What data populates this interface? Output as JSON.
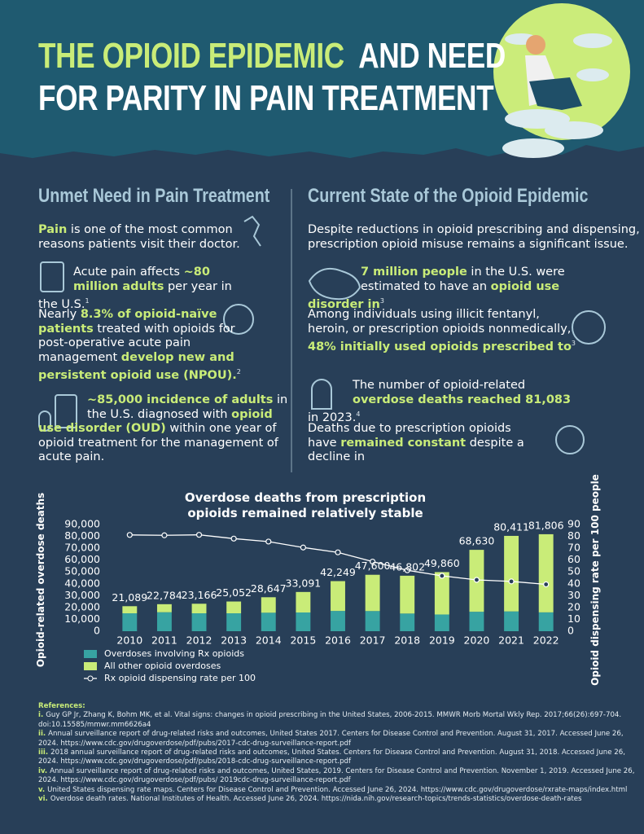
{
  "header": {
    "title_parts": [
      "THE OPIOID EPIDEMIC",
      "AND NEED",
      "FOR PARITY IN PAIN TREATMENT"
    ]
  },
  "sections": [
    {
      "heading": "Unmet Need in Pain Treatment",
      "paragraphs": [
        [
          {
            "highlight": "Pain"
          },
          {
            "plain": " is one of the most common reasons patients visit their doctor."
          }
        ],
        [
          {
            "plain": "Acute pain affects "
          },
          {
            "highlight": "~80 million adults"
          },
          {
            "plain": " per year in the U.S."
          },
          {
            "ref": "1"
          }
        ],
        [
          {
            "plain": "Nearly "
          },
          {
            "highlight": "8.3% of opioid-naïve patients"
          },
          {
            "plain": " treated with opioids for post-operative acute pain management "
          },
          {
            "highlight": "develop new and persistent opioid use (NPOU)."
          },
          {
            "ref": "2"
          }
        ],
        [
          {
            "highlight": "~85,000 incidence of adults"
          },
          {
            "plain": " in the U.S. diagnosed with "
          },
          {
            "highlight": "opioid use disorder (OUD)"
          },
          {
            "plain": " within one year of opioid treatment for the management of acute pain."
          }
        ]
      ]
    },
    {
      "heading": "Current State of the Opioid Epidemic",
      "paragraphs": [
        [
          {
            "plain": "Despite reductions in opioid prescribing and dispensing, prescription opioid misuse remains a significant issue."
          }
        ],
        [
          {
            "highlight": "7 million people"
          },
          {
            "plain": " in the U.S. were estimated to have an "
          },
          {
            "highlight": "opioid use disorder in"
          },
          {
            "ref": "3"
          }
        ],
        [
          {
            "plain": "Among individuals using illicit fentanyl, heroin, or prescription opioids nonmedically, "
          },
          {
            "highlight": "48% initially used opioids prescribed to"
          },
          {
            "ref": "3"
          }
        ],
        [
          {
            "plain": "The number of opioid-related "
          },
          {
            "highlight": "overdose deaths reached 81,083"
          },
          {
            "plain": " in 2023."
          },
          {
            "ref": "4"
          }
        ],
        [
          {
            "plain": "Deaths due to prescription opioids have "
          },
          {
            "highlight": "remained constant"
          },
          {
            "plain": " despite a decline in"
          }
        ]
      ]
    }
  ],
  "chart_data": {
    "type": "bar",
    "stacked": true,
    "title": "Overdose deaths from prescription opioids remained relatively stable",
    "y_label": "Opioid-related overdose deaths",
    "y2_label": "Opioid dispensing rate per 100 people",
    "categories": [
      "2010",
      "2011",
      "2012",
      "2013",
      "2014",
      "2015",
      "2016",
      "2017",
      "2018",
      "2019",
      "2020",
      "2021",
      "2022"
    ],
    "series": [
      {
        "name": "Overdoses involving Rx opioids",
        "color": "#37a3a2",
        "values": [
          15100,
          16000,
          15100,
          15100,
          15600,
          15800,
          17100,
          17000,
          14900,
          14100,
          16400,
          16700,
          15900
        ]
      },
      {
        "name": "All other opioid overdoses",
        "color": "#c9ec78",
        "values": [
          5989,
          6784,
          8066,
          9952,
          13047,
          17291,
          25149,
          30600,
          31902,
          35760,
          52230,
          63711,
          65906
        ]
      },
      {
        "name": "Rx opioid dispensing rate per 100",
        "color": "#ffffff",
        "type": "line",
        "axis": "y2",
        "values": [
          81.2,
          80.9,
          81.3,
          78.1,
          75.6,
          70.6,
          66.5,
          58.7,
          51.4,
          46.7,
          43.3,
          42.0,
          39.5
        ]
      }
    ],
    "totals": [
      21089,
      22784,
      23166,
      25052,
      28647,
      33091,
      42249,
      47600,
      46802,
      49860,
      68630,
      80411,
      81806
    ],
    "total_labels": [
      "21,089",
      "22,784",
      "23,166",
      "25,052",
      "28,647",
      "33,091",
      "42,249",
      "47,600",
      "46,802",
      "49,860",
      "68,630",
      "80,411",
      "81,806"
    ],
    "ylim": [
      0,
      90000
    ],
    "yticks": [
      0,
      {
        "value": 10000,
        "label": "10,000"
      },
      {
        "value": 20000,
        "label": "20,000"
      },
      {
        "value": 30000,
        "label": "30,000"
      },
      {
        "value": 40000,
        "label": "40,000"
      },
      {
        "value": 50000,
        "label": "50,000"
      },
      {
        "value": 60000,
        "label": "60,000"
      },
      {
        "value": 70000,
        "label": "70,000"
      },
      {
        "value": 80000,
        "label": "80,000"
      },
      {
        "value": 90000,
        "label": "90,000"
      }
    ],
    "y2lim": [
      0,
      90
    ],
    "y2ticks": [
      0,
      10,
      20,
      30,
      40,
      50,
      60,
      70,
      80,
      90
    ],
    "legend": "bottom-left"
  },
  "references": {
    "heading": "References:",
    "items": [
      {
        "numeral": "i.",
        "text": "Guy GP Jr, Zhang K, Bohm MK, et al. Vital signs: changes in opioid prescribing in the United States, 2006-2015. MMWR Morb Mortal Wkly Rep. 2017;66(26):697-704. doi:10.15585/mmwr.mm6626a4"
      },
      {
        "numeral": "ii.",
        "text": "Annual surveillance report of drug-related risks and outcomes, United States 2017. Centers for Disease Control and Prevention. August 31, 2017. Accessed June 26, 2024. https://www.cdc.gov/drugoverdose/pdf/pubs/2017-cdc-drug-surveillance-report.pdf"
      },
      {
        "numeral": "iii.",
        "text": "2018 annual surveillance report of drug-related risks and outcomes, United States. Centers for Disease Control and Prevention. August 31, 2018. Accessed June 26, 2024. https://www.cdc.gov/drugoverdose/pdf/pubs/2018-cdc-drug-surveillance-report.pdf"
      },
      {
        "numeral": "iv.",
        "text": "Annual surveillance report of drug-related risks and outcomes, United States, 2019. Centers for Disease Control and Prevention. November 1, 2019. Accessed June 26, 2024. https://www.cdc.gov/drugoverdose/pdf/pubs/ 2019cdc-drug-surveillance-report.pdf"
      },
      {
        "numeral": "v.",
        "text": "United States dispensing rate maps. Centers for Disease Control and Prevention. Accessed June 26, 2024. https://www.cdc.gov/drugoverdose/rxrate-maps/index.html"
      },
      {
        "numeral": "vi.",
        "text": "Overdose death rates. National Institutes of Health. Accessed June 26, 2024. https://nida.nih.gov/research-topics/trends-statistics/overdose-death-rates"
      }
    ]
  }
}
